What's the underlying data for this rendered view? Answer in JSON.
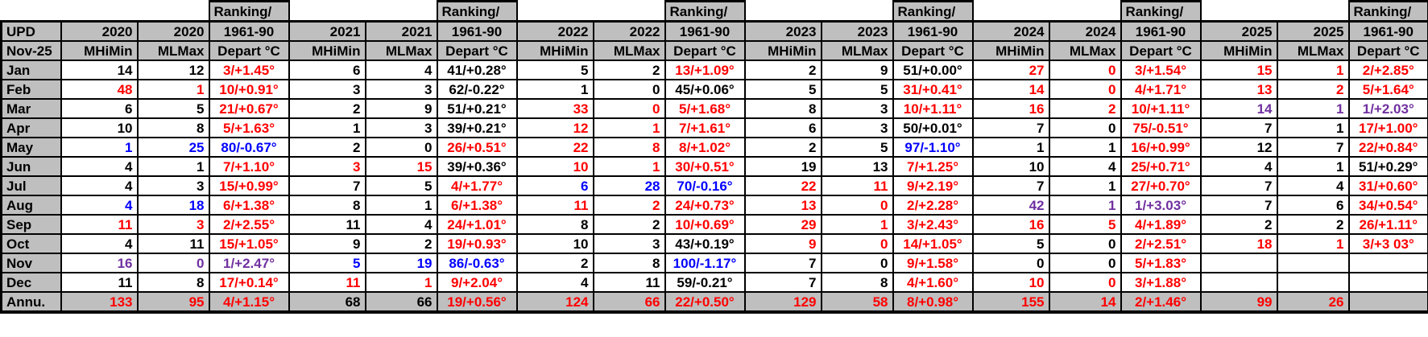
{
  "table": {
    "corner": {
      "upd": "UPD",
      "date": "Nov-25"
    },
    "column_headers": {
      "ranking_line1": "Ranking/",
      "ranking_line2": "1961-90",
      "depart": "Depart °C",
      "mhimin": "MHiMin",
      "mlmax": "MLMax"
    },
    "years": [
      "2020",
      "2021",
      "2022",
      "2023",
      "2024",
      "2025"
    ],
    "colors": {
      "black": "#000000",
      "red": "#ff0000",
      "blue": "#0000ff",
      "purple": "#7030a0",
      "header_bg": "#bfbfbf",
      "cell_bg": "#ffffff",
      "border": "#000000"
    },
    "rows": [
      {
        "label": "Jan",
        "annual": false,
        "cells": [
          {
            "v": "14",
            "c": "black"
          },
          {
            "v": "12",
            "c": "black"
          },
          {
            "v": "3/+1.45°",
            "c": "red"
          },
          {
            "v": "6",
            "c": "black"
          },
          {
            "v": "4",
            "c": "black"
          },
          {
            "v": "41/+0.28°",
            "c": "black"
          },
          {
            "v": "5",
            "c": "black"
          },
          {
            "v": "2",
            "c": "black"
          },
          {
            "v": "13/+1.09°",
            "c": "red"
          },
          {
            "v": "2",
            "c": "black"
          },
          {
            "v": "9",
            "c": "black"
          },
          {
            "v": "51/+0.00°",
            "c": "black"
          },
          {
            "v": "27",
            "c": "red"
          },
          {
            "v": "0",
            "c": "red"
          },
          {
            "v": "3/+1.54°",
            "c": "red"
          },
          {
            "v": "15",
            "c": "red"
          },
          {
            "v": "1",
            "c": "red"
          },
          {
            "v": "2/+2.85°",
            "c": "red"
          }
        ]
      },
      {
        "label": "Feb",
        "annual": false,
        "cells": [
          {
            "v": "48",
            "c": "red"
          },
          {
            "v": "1",
            "c": "red"
          },
          {
            "v": "10/+0.91°",
            "c": "red"
          },
          {
            "v": "3",
            "c": "black"
          },
          {
            "v": "3",
            "c": "black"
          },
          {
            "v": "62/-0.22°",
            "c": "black"
          },
          {
            "v": "1",
            "c": "black"
          },
          {
            "v": "0",
            "c": "black"
          },
          {
            "v": "45/+0.06°",
            "c": "black"
          },
          {
            "v": "5",
            "c": "black"
          },
          {
            "v": "5",
            "c": "black"
          },
          {
            "v": "31/+0.41°",
            "c": "red"
          },
          {
            "v": "14",
            "c": "red"
          },
          {
            "v": "0",
            "c": "red"
          },
          {
            "v": "4/+1.71°",
            "c": "red"
          },
          {
            "v": "13",
            "c": "red"
          },
          {
            "v": "2",
            "c": "red"
          },
          {
            "v": "5/+1.64°",
            "c": "red"
          }
        ]
      },
      {
        "label": "Mar",
        "annual": false,
        "cells": [
          {
            "v": "6",
            "c": "black"
          },
          {
            "v": "5",
            "c": "black"
          },
          {
            "v": "21/+0.67°",
            "c": "red"
          },
          {
            "v": "2",
            "c": "black"
          },
          {
            "v": "9",
            "c": "black"
          },
          {
            "v": "51/+0.21°",
            "c": "black"
          },
          {
            "v": "33",
            "c": "red"
          },
          {
            "v": "0",
            "c": "red"
          },
          {
            "v": "5/+1.68°",
            "c": "red"
          },
          {
            "v": "8",
            "c": "black"
          },
          {
            "v": "3",
            "c": "black"
          },
          {
            "v": "10/+1.11°",
            "c": "red"
          },
          {
            "v": "16",
            "c": "red"
          },
          {
            "v": "2",
            "c": "red"
          },
          {
            "v": "10/+1.11°",
            "c": "red"
          },
          {
            "v": "14",
            "c": "purple"
          },
          {
            "v": "1",
            "c": "purple"
          },
          {
            "v": "1/+2.03°",
            "c": "purple"
          }
        ]
      },
      {
        "label": "Apr",
        "annual": false,
        "cells": [
          {
            "v": "10",
            "c": "black"
          },
          {
            "v": "8",
            "c": "black"
          },
          {
            "v": "5/+1.63°",
            "c": "red"
          },
          {
            "v": "1",
            "c": "black"
          },
          {
            "v": "3",
            "c": "black"
          },
          {
            "v": "39/+0.21°",
            "c": "black"
          },
          {
            "v": "12",
            "c": "red"
          },
          {
            "v": "1",
            "c": "red"
          },
          {
            "v": "7/+1.61°",
            "c": "red"
          },
          {
            "v": "6",
            "c": "black"
          },
          {
            "v": "3",
            "c": "black"
          },
          {
            "v": "50/+0.01°",
            "c": "black"
          },
          {
            "v": "7",
            "c": "black"
          },
          {
            "v": "0",
            "c": "black"
          },
          {
            "v": "75/-0.51°",
            "c": "red"
          },
          {
            "v": "7",
            "c": "black"
          },
          {
            "v": "1",
            "c": "black"
          },
          {
            "v": "17/+1.00°",
            "c": "red"
          }
        ]
      },
      {
        "label": "May",
        "annual": false,
        "cells": [
          {
            "v": "1",
            "c": "blue"
          },
          {
            "v": "25",
            "c": "blue"
          },
          {
            "v": "80/-0.67°",
            "c": "blue"
          },
          {
            "v": "2",
            "c": "black"
          },
          {
            "v": "0",
            "c": "black"
          },
          {
            "v": "26/+0.51°",
            "c": "red"
          },
          {
            "v": "22",
            "c": "red"
          },
          {
            "v": "8",
            "c": "red"
          },
          {
            "v": "8/+1.02°",
            "c": "red"
          },
          {
            "v": "2",
            "c": "black"
          },
          {
            "v": "5",
            "c": "black"
          },
          {
            "v": "97/-1.10°",
            "c": "blue"
          },
          {
            "v": "1",
            "c": "black"
          },
          {
            "v": "1",
            "c": "black"
          },
          {
            "v": "16/+0.99°",
            "c": "red"
          },
          {
            "v": "12",
            "c": "black"
          },
          {
            "v": "7",
            "c": "black"
          },
          {
            "v": "22/+0.84°",
            "c": "red"
          }
        ]
      },
      {
        "label": "Jun",
        "annual": false,
        "cells": [
          {
            "v": "4",
            "c": "black"
          },
          {
            "v": "1",
            "c": "black"
          },
          {
            "v": "7/+1.10°",
            "c": "red"
          },
          {
            "v": "3",
            "c": "red"
          },
          {
            "v": "15",
            "c": "red"
          },
          {
            "v": "39/+0.36°",
            "c": "black"
          },
          {
            "v": "10",
            "c": "red"
          },
          {
            "v": "1",
            "c": "red"
          },
          {
            "v": "30/+0.51°",
            "c": "red"
          },
          {
            "v": "19",
            "c": "black"
          },
          {
            "v": "13",
            "c": "black"
          },
          {
            "v": "7/+1.25°",
            "c": "red"
          },
          {
            "v": "10",
            "c": "black"
          },
          {
            "v": "4",
            "c": "black"
          },
          {
            "v": "25/+0.71°",
            "c": "red"
          },
          {
            "v": "4",
            "c": "black"
          },
          {
            "v": "1",
            "c": "black"
          },
          {
            "v": "51/+0.29°",
            "c": "black"
          }
        ]
      },
      {
        "label": "Jul",
        "annual": false,
        "cells": [
          {
            "v": "4",
            "c": "black"
          },
          {
            "v": "3",
            "c": "black"
          },
          {
            "v": "15/+0.99°",
            "c": "red"
          },
          {
            "v": "7",
            "c": "black"
          },
          {
            "v": "5",
            "c": "black"
          },
          {
            "v": "4/+1.77°",
            "c": "red"
          },
          {
            "v": "6",
            "c": "blue"
          },
          {
            "v": "28",
            "c": "blue"
          },
          {
            "v": "70/-0.16°",
            "c": "blue"
          },
          {
            "v": "22",
            "c": "red"
          },
          {
            "v": "11",
            "c": "red"
          },
          {
            "v": "9/+2.19°",
            "c": "red"
          },
          {
            "v": "7",
            "c": "black"
          },
          {
            "v": "1",
            "c": "black"
          },
          {
            "v": "27/+0.70°",
            "c": "red"
          },
          {
            "v": "7",
            "c": "black"
          },
          {
            "v": "4",
            "c": "black"
          },
          {
            "v": "31/+0.60°",
            "c": "red"
          }
        ]
      },
      {
        "label": "Aug",
        "annual": false,
        "cells": [
          {
            "v": "4",
            "c": "blue"
          },
          {
            "v": "18",
            "c": "blue"
          },
          {
            "v": "6/+1.38°",
            "c": "red"
          },
          {
            "v": "8",
            "c": "black"
          },
          {
            "v": "1",
            "c": "black"
          },
          {
            "v": "6/+1.38°",
            "c": "red"
          },
          {
            "v": "11",
            "c": "red"
          },
          {
            "v": "2",
            "c": "red"
          },
          {
            "v": "24/+0.73°",
            "c": "red"
          },
          {
            "v": "13",
            "c": "red"
          },
          {
            "v": "0",
            "c": "red"
          },
          {
            "v": "2/+2.28°",
            "c": "red"
          },
          {
            "v": "42",
            "c": "purple"
          },
          {
            "v": "1",
            "c": "purple"
          },
          {
            "v": "1/+3.03°",
            "c": "purple"
          },
          {
            "v": "7",
            "c": "black"
          },
          {
            "v": "6",
            "c": "black"
          },
          {
            "v": "34/+0.54°",
            "c": "red"
          }
        ]
      },
      {
        "label": "Sep",
        "annual": false,
        "cells": [
          {
            "v": "11",
            "c": "red"
          },
          {
            "v": "3",
            "c": "red"
          },
          {
            "v": "2/+2.55°",
            "c": "red"
          },
          {
            "v": "11",
            "c": "black"
          },
          {
            "v": "4",
            "c": "black"
          },
          {
            "v": "24/+1.01°",
            "c": "red"
          },
          {
            "v": "8",
            "c": "black"
          },
          {
            "v": "2",
            "c": "black"
          },
          {
            "v": "10/+0.69°",
            "c": "red"
          },
          {
            "v": "29",
            "c": "red"
          },
          {
            "v": "1",
            "c": "red"
          },
          {
            "v": "3/+2.43°",
            "c": "red"
          },
          {
            "v": "16",
            "c": "red"
          },
          {
            "v": "5",
            "c": "red"
          },
          {
            "v": "4/+1.89°",
            "c": "red"
          },
          {
            "v": "2",
            "c": "black"
          },
          {
            "v": "2",
            "c": "black"
          },
          {
            "v": "26/+1.11°",
            "c": "red"
          }
        ]
      },
      {
        "label": "Oct",
        "annual": false,
        "cells": [
          {
            "v": "4",
            "c": "black"
          },
          {
            "v": "11",
            "c": "black"
          },
          {
            "v": "15/+1.05°",
            "c": "red"
          },
          {
            "v": "9",
            "c": "black"
          },
          {
            "v": "2",
            "c": "black"
          },
          {
            "v": "19/+0.93°",
            "c": "red"
          },
          {
            "v": "10",
            "c": "black"
          },
          {
            "v": "3",
            "c": "black"
          },
          {
            "v": "43/+0.19°",
            "c": "black"
          },
          {
            "v": "9",
            "c": "red"
          },
          {
            "v": "0",
            "c": "red"
          },
          {
            "v": "14/+1.05°",
            "c": "red"
          },
          {
            "v": "5",
            "c": "black"
          },
          {
            "v": "0",
            "c": "black"
          },
          {
            "v": "2/+2.51°",
            "c": "red"
          },
          {
            "v": "18",
            "c": "red"
          },
          {
            "v": "1",
            "c": "red"
          },
          {
            "v": "3/+3 03°",
            "c": "red"
          }
        ]
      },
      {
        "label": "Nov",
        "annual": false,
        "cells": [
          {
            "v": "16",
            "c": "purple"
          },
          {
            "v": "0",
            "c": "purple"
          },
          {
            "v": "1/+2.47°",
            "c": "purple"
          },
          {
            "v": "5",
            "c": "blue"
          },
          {
            "v": "19",
            "c": "blue"
          },
          {
            "v": "86/-0.63°",
            "c": "blue"
          },
          {
            "v": "2",
            "c": "black"
          },
          {
            "v": "8",
            "c": "black"
          },
          {
            "v": "100/-1.17°",
            "c": "blue"
          },
          {
            "v": "7",
            "c": "black"
          },
          {
            "v": "0",
            "c": "black"
          },
          {
            "v": "9/+1.58°",
            "c": "red"
          },
          {
            "v": "0",
            "c": "black"
          },
          {
            "v": "0",
            "c": "black"
          },
          {
            "v": "5/+1.83°",
            "c": "red"
          },
          {
            "v": "",
            "c": "black"
          },
          {
            "v": "",
            "c": "black"
          },
          {
            "v": "",
            "c": "black"
          }
        ]
      },
      {
        "label": "Dec",
        "annual": false,
        "cells": [
          {
            "v": "11",
            "c": "black"
          },
          {
            "v": "8",
            "c": "black"
          },
          {
            "v": "17/+0.14°",
            "c": "red"
          },
          {
            "v": "11",
            "c": "red"
          },
          {
            "v": "1",
            "c": "red"
          },
          {
            "v": "9/+2.04°",
            "c": "red"
          },
          {
            "v": "4",
            "c": "black"
          },
          {
            "v": "11",
            "c": "black"
          },
          {
            "v": "59/-0.21°",
            "c": "black"
          },
          {
            "v": "7",
            "c": "black"
          },
          {
            "v": "8",
            "c": "black"
          },
          {
            "v": "4/+1.60°",
            "c": "red"
          },
          {
            "v": "10",
            "c": "red"
          },
          {
            "v": "0",
            "c": "red"
          },
          {
            "v": "3/+1.88°",
            "c": "red"
          },
          {
            "v": "",
            "c": "black"
          },
          {
            "v": "",
            "c": "black"
          },
          {
            "v": "",
            "c": "black"
          }
        ]
      },
      {
        "label": "Annu.",
        "annual": true,
        "cells": [
          {
            "v": "133",
            "c": "red"
          },
          {
            "v": "95",
            "c": "red"
          },
          {
            "v": "4/+1.15°",
            "c": "red"
          },
          {
            "v": "68",
            "c": "black"
          },
          {
            "v": "66",
            "c": "black"
          },
          {
            "v": "19/+0.56°",
            "c": "red"
          },
          {
            "v": "124",
            "c": "red"
          },
          {
            "v": "66",
            "c": "red"
          },
          {
            "v": "22/+0.50°",
            "c": "red"
          },
          {
            "v": "129",
            "c": "red"
          },
          {
            "v": "58",
            "c": "red"
          },
          {
            "v": "8/+0.98°",
            "c": "red"
          },
          {
            "v": "155",
            "c": "red"
          },
          {
            "v": "14",
            "c": "red"
          },
          {
            "v": "2/+1.46°",
            "c": "red"
          },
          {
            "v": "99",
            "c": "red"
          },
          {
            "v": "26",
            "c": "red"
          },
          {
            "v": "",
            "c": "black"
          }
        ]
      }
    ]
  }
}
